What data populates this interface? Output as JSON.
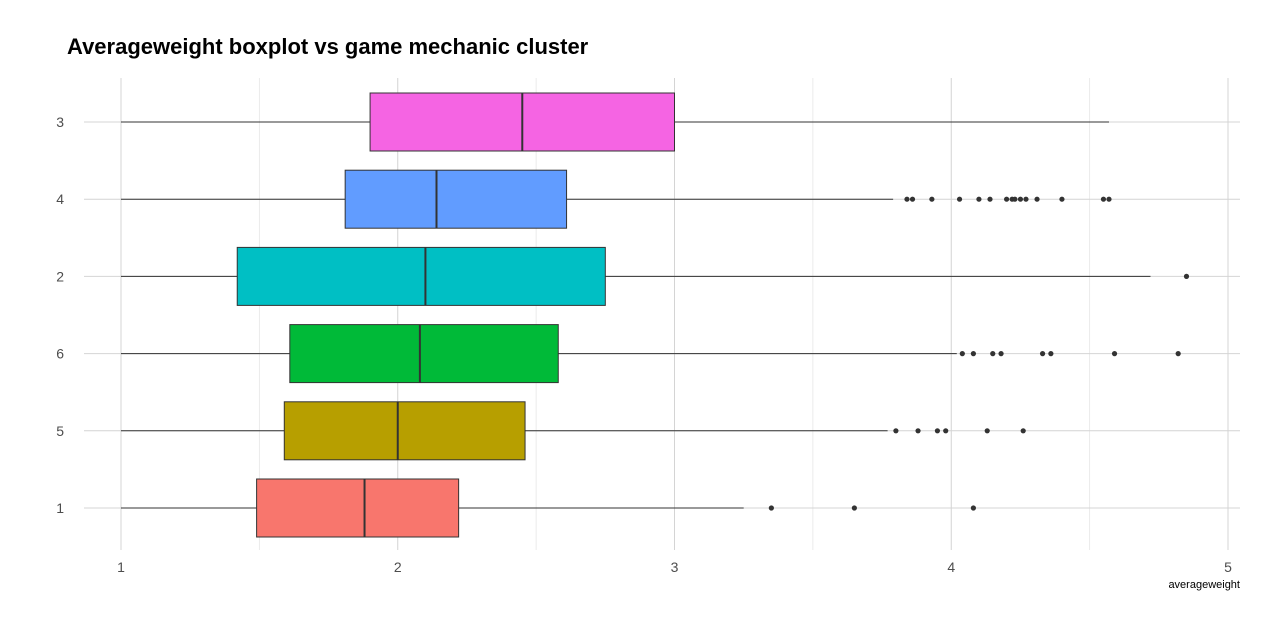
{
  "chart_data": {
    "type": "boxplot",
    "orientation": "horizontal",
    "title": "Averageweight boxplot vs game mechanic cluster",
    "xlabel": "averageweight",
    "ylabel": "",
    "xlim": [
      0.85,
      5.05
    ],
    "x_ticks": [
      1,
      2,
      3,
      4,
      5
    ],
    "grid": true,
    "legend": "none",
    "categories": [
      "3",
      "4",
      "2",
      "6",
      "5",
      "1"
    ],
    "series": [
      {
        "category": "3",
        "color": "#F564E3",
        "whisker_low": 1.0,
        "q1": 1.9,
        "median": 2.45,
        "q3": 3.0,
        "whisker_high": 4.57,
        "outliers": []
      },
      {
        "category": "4",
        "color": "#619CFF",
        "whisker_low": 1.0,
        "q1": 1.81,
        "median": 2.14,
        "q3": 2.61,
        "whisker_high": 3.79,
        "outliers": [
          3.84,
          3.86,
          3.93,
          4.03,
          4.1,
          4.14,
          4.2,
          4.22,
          4.23,
          4.25,
          4.27,
          4.31,
          4.4,
          4.55,
          4.57
        ]
      },
      {
        "category": "2",
        "color": "#00BFC4",
        "whisker_low": 1.0,
        "q1": 1.42,
        "median": 2.1,
        "q3": 2.75,
        "whisker_high": 4.72,
        "outliers": [
          4.85
        ]
      },
      {
        "category": "6",
        "color": "#00BA38",
        "whisker_low": 1.0,
        "q1": 1.61,
        "median": 2.08,
        "q3": 2.58,
        "whisker_high": 4.02,
        "outliers": [
          4.04,
          4.08,
          4.15,
          4.18,
          4.33,
          4.36,
          4.59,
          4.82
        ]
      },
      {
        "category": "5",
        "color": "#B79F00",
        "whisker_low": 1.0,
        "q1": 1.59,
        "median": 2.0,
        "q3": 2.46,
        "whisker_high": 3.77,
        "outliers": [
          3.8,
          3.88,
          3.95,
          3.98,
          4.13,
          4.26
        ]
      },
      {
        "category": "1",
        "color": "#F8766D",
        "whisker_low": 1.0,
        "q1": 1.49,
        "median": 1.88,
        "q3": 2.22,
        "whisker_high": 3.25,
        "outliers": [
          3.35,
          3.65,
          4.08
        ]
      }
    ]
  }
}
